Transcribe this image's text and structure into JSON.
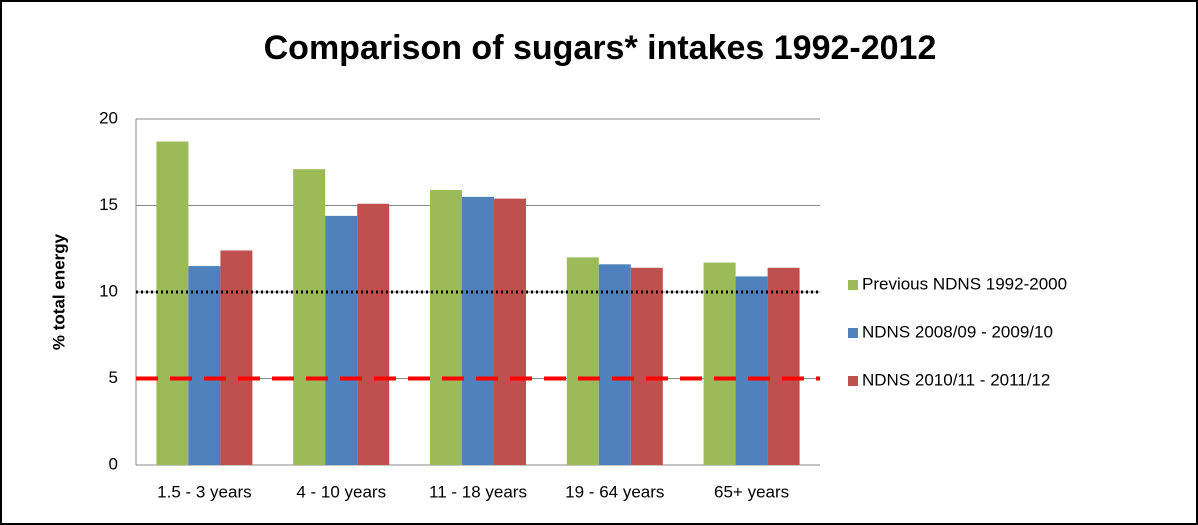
{
  "chart_data": {
    "type": "bar",
    "title": "Comparison of sugars* intakes 1992-2012",
    "y_label": "% total energy",
    "categories": [
      "1.5 - 3 years",
      "4 - 10 years",
      "11 - 18 years",
      "19 - 64 years",
      "65+ years"
    ],
    "series": [
      {
        "name": "Previous NDNS 1992-2000",
        "color": "#9bbb59",
        "values": [
          18.7,
          17.1,
          15.9,
          12.0,
          11.7
        ]
      },
      {
        "name": "NDNS 2008/09 - 2009/10",
        "color": "#4f81bd",
        "values": [
          11.5,
          14.4,
          15.5,
          11.6,
          10.9
        ]
      },
      {
        "name": "NDNS 2010/11 - 2011/12",
        "color": "#c0504d",
        "values": [
          12.4,
          15.1,
          15.4,
          11.4,
          11.4
        ]
      }
    ],
    "reference_lines": [
      {
        "value": 10,
        "color": "#000000",
        "style": "dotted"
      },
      {
        "value": 5,
        "color": "#ff0000",
        "style": "dashed"
      }
    ],
    "ylim": [
      0,
      20
    ],
    "yticks": [
      0,
      5,
      10,
      15,
      20
    ],
    "grid": true,
    "legend": "right"
  }
}
